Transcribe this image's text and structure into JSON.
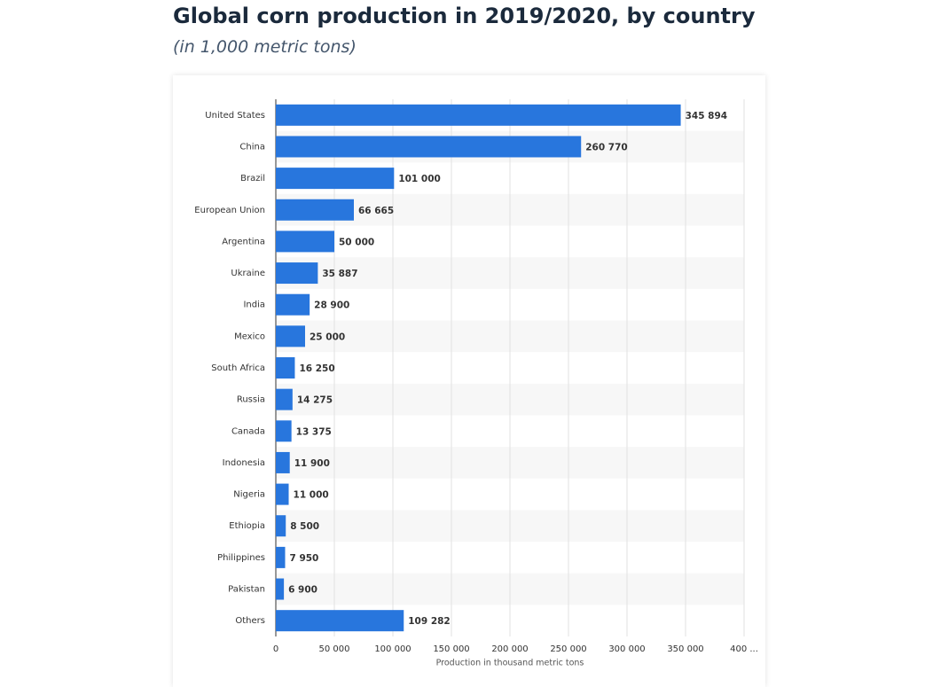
{
  "chart_data": {
    "type": "barh",
    "title": "Global corn production in 2019/2020, by country",
    "subtitle": "(in 1,000 metric tons)",
    "x_label": "Production in thousand metric tons",
    "categories": [
      "United States",
      "China",
      "Brazil",
      "European Union",
      "Argentina",
      "Ukraine",
      "India",
      "Mexico",
      "South Africa",
      "Russia",
      "Canada",
      "Indonesia",
      "Nigeria",
      "Ethiopia",
      "Philippines",
      "Pakistan",
      "Others"
    ],
    "values": [
      345894,
      260770,
      101000,
      66665,
      50000,
      35887,
      28900,
      25000,
      16250,
      14275,
      13375,
      11900,
      11000,
      8500,
      7950,
      6900,
      109282
    ],
    "value_labels": [
      "345 894",
      "260 770",
      "101 000",
      "66 665",
      "50 000",
      "35 887",
      "28 900",
      "25 000",
      "16 250",
      "14 275",
      "13 375",
      "11 900",
      "11 000",
      "8 500",
      "7 950",
      "6 900",
      "109 282"
    ],
    "color": "#2876dd",
    "xlim": [
      0,
      400000
    ],
    "xticks": [
      0,
      {
        "value": 50000,
        "label": "50 000"
      },
      {
        "value": 100000,
        "label": "100 000"
      },
      {
        "value": 150000,
        "label": "150 000"
      },
      {
        "value": 200000,
        "label": "200 000"
      },
      {
        "value": 250000,
        "label": "250 000"
      },
      {
        "value": 300000,
        "label": "300 000"
      },
      {
        "value": 350000,
        "label": "350 000"
      },
      {
        "value": 400000,
        "label": "400 ..."
      }
    ],
    "grid": true
  }
}
